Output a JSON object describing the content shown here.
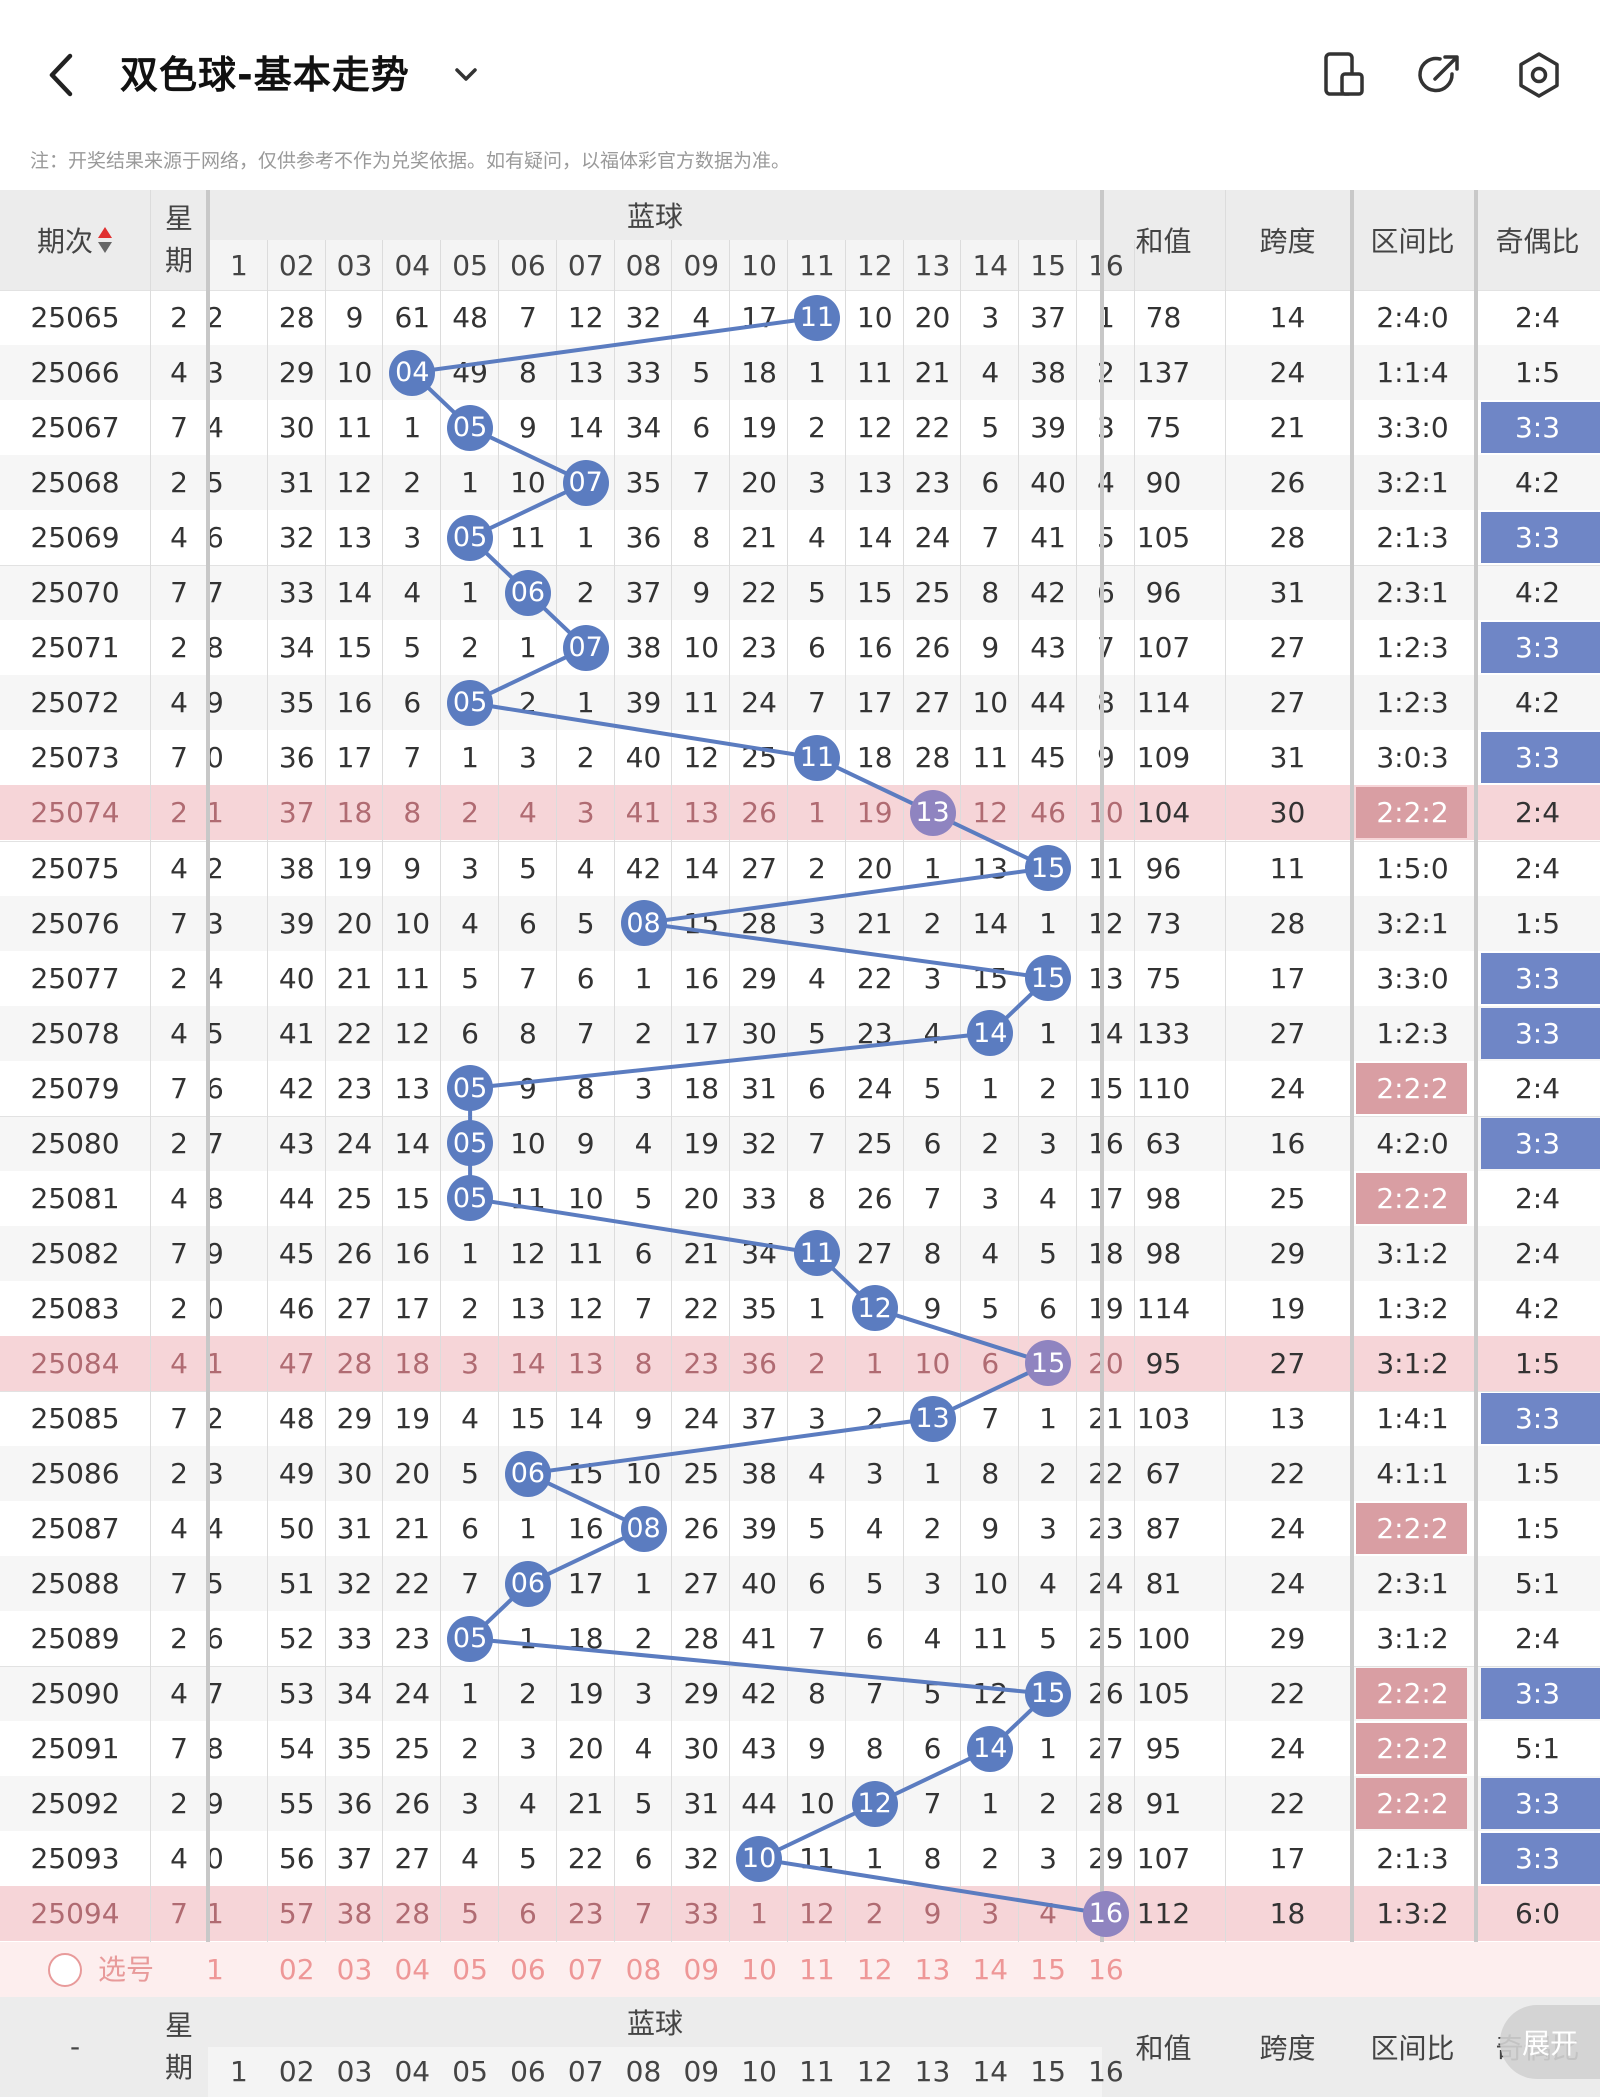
{
  "header": {
    "title": "双色球-基本走势",
    "notice": "注：开奖结果来源于网络，仅供参考不作为兑奖依据。如有疑问，以福体彩官方数据为准。",
    "icons": [
      "back-arrow-icon",
      "chevron-down-icon",
      "phone-layout-icon",
      "share-icon",
      "settings-icon"
    ]
  },
  "table": {
    "col_period": "期次",
    "col_week": "星\n期",
    "group_blue": "蓝球",
    "col_sum": "和值",
    "col_span": "跨度",
    "col_zone": "区间比",
    "col_oddeven": "奇偶比",
    "blue_numbers": [
      "1",
      "02",
      "03",
      "04",
      "05",
      "06",
      "07",
      "08",
      "09",
      "10",
      "11",
      "12",
      "13",
      "14",
      "15",
      "16"
    ],
    "rows": [
      {
        "period": "25065",
        "week": "2",
        "left": "2",
        "cells": [
          "28",
          "9",
          "61",
          "48",
          "7",
          "12",
          "32",
          "4",
          "17",
          "11",
          "10",
          "20",
          "3",
          "37",
          "1"
        ],
        "ball": 11,
        "sum": "78",
        "span": "14",
        "zone": "2:4:0",
        "oe": "2:4",
        "hl": ""
      },
      {
        "period": "25066",
        "week": "4",
        "left": "3",
        "cells": [
          "29",
          "10",
          "04",
          "49",
          "8",
          "13",
          "33",
          "5",
          "18",
          "1",
          "11",
          "21",
          "4",
          "38",
          "2"
        ],
        "ball": 4,
        "sum": "137",
        "span": "24",
        "zone": "1:1:4",
        "oe": "1:5",
        "hl": ""
      },
      {
        "period": "25067",
        "week": "7",
        "left": "4",
        "cells": [
          "30",
          "11",
          "1",
          "05",
          "9",
          "14",
          "34",
          "6",
          "19",
          "2",
          "12",
          "22",
          "5",
          "39",
          "3"
        ],
        "ball": 5,
        "sum": "75",
        "span": "21",
        "zone": "3:3:0",
        "oe": "3:3",
        "hl": "oe"
      },
      {
        "period": "25068",
        "week": "2",
        "left": "5",
        "cells": [
          "31",
          "12",
          "2",
          "1",
          "10",
          "07",
          "35",
          "7",
          "20",
          "3",
          "13",
          "23",
          "6",
          "40",
          "4"
        ],
        "ball": 7,
        "sum": "90",
        "span": "26",
        "zone": "3:2:1",
        "oe": "4:2",
        "hl": ""
      },
      {
        "period": "25069",
        "week": "4",
        "left": "6",
        "cells": [
          "32",
          "13",
          "3",
          "05",
          "11",
          "1",
          "36",
          "8",
          "21",
          "4",
          "14",
          "24",
          "7",
          "41",
          "5"
        ],
        "ball": 5,
        "sum": "105",
        "span": "28",
        "zone": "2:1:3",
        "oe": "3:3",
        "hl": "oe"
      },
      {
        "period": "25070",
        "week": "7",
        "left": "7",
        "cells": [
          "33",
          "14",
          "4",
          "1",
          "06",
          "2",
          "37",
          "9",
          "22",
          "5",
          "15",
          "25",
          "8",
          "42",
          "6"
        ],
        "ball": 6,
        "sum": "96",
        "span": "31",
        "zone": "2:3:1",
        "oe": "4:2",
        "hl": ""
      },
      {
        "period": "25071",
        "week": "2",
        "left": "8",
        "cells": [
          "34",
          "15",
          "5",
          "2",
          "1",
          "07",
          "38",
          "10",
          "23",
          "6",
          "16",
          "26",
          "9",
          "43",
          "7"
        ],
        "ball": 7,
        "sum": "107",
        "span": "27",
        "zone": "1:2:3",
        "oe": "3:3",
        "hl": "oe"
      },
      {
        "period": "25072",
        "week": "4",
        "left": "9",
        "cells": [
          "35",
          "16",
          "6",
          "05",
          "2",
          "1",
          "39",
          "11",
          "24",
          "7",
          "17",
          "27",
          "10",
          "44",
          "8"
        ],
        "ball": 5,
        "sum": "114",
        "span": "27",
        "zone": "1:2:3",
        "oe": "4:2",
        "hl": ""
      },
      {
        "period": "25073",
        "week": "7",
        "left": "0",
        "cells": [
          "36",
          "17",
          "7",
          "1",
          "3",
          "2",
          "40",
          "12",
          "25",
          "11",
          "18",
          "28",
          "11",
          "45",
          "9"
        ],
        "ball": 11,
        "sum": "109",
        "span": "31",
        "zone": "3:0:3",
        "oe": "3:3",
        "hl": "oe"
      },
      {
        "period": "25074",
        "week": "2",
        "left": "1",
        "cells": [
          "37",
          "18",
          "8",
          "2",
          "4",
          "3",
          "41",
          "13",
          "26",
          "1",
          "19",
          "13",
          "12",
          "46",
          "10"
        ],
        "ball": 13,
        "sum": "104",
        "span": "30",
        "zone": "2:2:2",
        "oe": "2:4",
        "hl": "zone",
        "pink": true
      },
      {
        "period": "25075",
        "week": "4",
        "left": "2",
        "cells": [
          "38",
          "19",
          "9",
          "3",
          "5",
          "4",
          "42",
          "14",
          "27",
          "2",
          "20",
          "1",
          "13",
          "15",
          "11"
        ],
        "ball": 15,
        "sum": "96",
        "span": "11",
        "zone": "1:5:0",
        "oe": "2:4",
        "hl": ""
      },
      {
        "period": "25076",
        "week": "7",
        "left": "3",
        "cells": [
          "39",
          "20",
          "10",
          "4",
          "6",
          "5",
          "08",
          "15",
          "28",
          "3",
          "21",
          "2",
          "14",
          "1",
          "12"
        ],
        "ball": 8,
        "sum": "73",
        "span": "28",
        "zone": "3:2:1",
        "oe": "1:5",
        "hl": ""
      },
      {
        "period": "25077",
        "week": "2",
        "left": "4",
        "cells": [
          "40",
          "21",
          "11",
          "5",
          "7",
          "6",
          "1",
          "16",
          "29",
          "4",
          "22",
          "3",
          "15",
          "15",
          "13"
        ],
        "ball": 15,
        "sum": "75",
        "span": "17",
        "zone": "3:3:0",
        "oe": "3:3",
        "hl": "oe"
      },
      {
        "period": "25078",
        "week": "4",
        "left": "5",
        "cells": [
          "41",
          "22",
          "12",
          "6",
          "8",
          "7",
          "2",
          "17",
          "30",
          "5",
          "23",
          "4",
          "14",
          "1",
          "14"
        ],
        "ball": 14,
        "sum": "133",
        "span": "27",
        "zone": "1:2:3",
        "oe": "3:3",
        "hl": "oe"
      },
      {
        "period": "25079",
        "week": "7",
        "left": "6",
        "cells": [
          "42",
          "23",
          "13",
          "05",
          "9",
          "8",
          "3",
          "18",
          "31",
          "6",
          "24",
          "5",
          "1",
          "2",
          "15"
        ],
        "ball": 5,
        "sum": "110",
        "span": "24",
        "zone": "2:2:2",
        "oe": "2:4",
        "hl": "zone"
      },
      {
        "period": "25080",
        "week": "2",
        "left": "7",
        "cells": [
          "43",
          "24",
          "14",
          "05",
          "10",
          "9",
          "4",
          "19",
          "32",
          "7",
          "25",
          "6",
          "2",
          "3",
          "16"
        ],
        "ball": 5,
        "sum": "63",
        "span": "16",
        "zone": "4:2:0",
        "oe": "3:3",
        "hl": "oe"
      },
      {
        "period": "25081",
        "week": "4",
        "left": "8",
        "cells": [
          "44",
          "25",
          "15",
          "05",
          "11",
          "10",
          "5",
          "20",
          "33",
          "8",
          "26",
          "7",
          "3",
          "4",
          "17"
        ],
        "ball": 5,
        "sum": "98",
        "span": "25",
        "zone": "2:2:2",
        "oe": "2:4",
        "hl": "zone"
      },
      {
        "period": "25082",
        "week": "7",
        "left": "9",
        "cells": [
          "45",
          "26",
          "16",
          "1",
          "12",
          "11",
          "6",
          "21",
          "34",
          "11",
          "27",
          "8",
          "4",
          "5",
          "18"
        ],
        "ball": 11,
        "sum": "98",
        "span": "29",
        "zone": "3:1:2",
        "oe": "2:4",
        "hl": ""
      },
      {
        "period": "25083",
        "week": "2",
        "left": "0",
        "cells": [
          "46",
          "27",
          "17",
          "2",
          "13",
          "12",
          "7",
          "22",
          "35",
          "1",
          "12",
          "9",
          "5",
          "6",
          "19"
        ],
        "ball": 12,
        "sum": "114",
        "span": "19",
        "zone": "1:3:2",
        "oe": "4:2",
        "hl": ""
      },
      {
        "period": "25084",
        "week": "4",
        "left": "1",
        "cells": [
          "47",
          "28",
          "18",
          "3",
          "14",
          "13",
          "8",
          "23",
          "36",
          "2",
          "1",
          "10",
          "6",
          "15",
          "20"
        ],
        "ball": 15,
        "sum": "95",
        "span": "27",
        "zone": "3:1:2",
        "oe": "1:5",
        "hl": "",
        "pink": true
      },
      {
        "period": "25085",
        "week": "7",
        "left": "2",
        "cells": [
          "48",
          "29",
          "19",
          "4",
          "15",
          "14",
          "9",
          "24",
          "37",
          "3",
          "2",
          "13",
          "7",
          "1",
          "21"
        ],
        "ball": 13,
        "sum": "103",
        "span": "13",
        "zone": "1:4:1",
        "oe": "3:3",
        "hl": "oe"
      },
      {
        "period": "25086",
        "week": "2",
        "left": "3",
        "cells": [
          "49",
          "30",
          "20",
          "5",
          "06",
          "15",
          "10",
          "25",
          "38",
          "4",
          "3",
          "1",
          "8",
          "2",
          "22"
        ],
        "ball": 6,
        "sum": "67",
        "span": "22",
        "zone": "4:1:1",
        "oe": "1:5",
        "hl": ""
      },
      {
        "period": "25087",
        "week": "4",
        "left": "4",
        "cells": [
          "50",
          "31",
          "21",
          "6",
          "1",
          "16",
          "08",
          "26",
          "39",
          "5",
          "4",
          "2",
          "9",
          "3",
          "23"
        ],
        "ball": 8,
        "sum": "87",
        "span": "24",
        "zone": "2:2:2",
        "oe": "1:5",
        "hl": "zone"
      },
      {
        "period": "25088",
        "week": "7",
        "left": "5",
        "cells": [
          "51",
          "32",
          "22",
          "7",
          "06",
          "17",
          "1",
          "27",
          "40",
          "6",
          "5",
          "3",
          "10",
          "4",
          "24"
        ],
        "ball": 6,
        "sum": "81",
        "span": "24",
        "zone": "2:3:1",
        "oe": "5:1",
        "hl": ""
      },
      {
        "period": "25089",
        "week": "2",
        "left": "6",
        "cells": [
          "52",
          "33",
          "23",
          "05",
          "1",
          "18",
          "2",
          "28",
          "41",
          "7",
          "6",
          "4",
          "11",
          "5",
          "25"
        ],
        "ball": 5,
        "sum": "100",
        "span": "29",
        "zone": "3:1:2",
        "oe": "2:4",
        "hl": ""
      },
      {
        "period": "25090",
        "week": "4",
        "left": "7",
        "cells": [
          "53",
          "34",
          "24",
          "1",
          "2",
          "19",
          "3",
          "29",
          "42",
          "8",
          "7",
          "5",
          "12",
          "15",
          "26"
        ],
        "ball": 15,
        "sum": "105",
        "span": "22",
        "zone": "2:2:2",
        "oe": "3:3",
        "hl": "both"
      },
      {
        "period": "25091",
        "week": "7",
        "left": "8",
        "cells": [
          "54",
          "35",
          "25",
          "2",
          "3",
          "20",
          "4",
          "30",
          "43",
          "9",
          "8",
          "6",
          "14",
          "1",
          "27"
        ],
        "ball": 14,
        "sum": "95",
        "span": "24",
        "zone": "2:2:2",
        "oe": "5:1",
        "hl": "zone"
      },
      {
        "period": "25092",
        "week": "2",
        "left": "9",
        "cells": [
          "55",
          "36",
          "26",
          "3",
          "4",
          "21",
          "5",
          "31",
          "44",
          "10",
          "12",
          "7",
          "1",
          "2",
          "28"
        ],
        "ball": 12,
        "sum": "91",
        "span": "22",
        "zone": "2:2:2",
        "oe": "3:3",
        "hl": "both"
      },
      {
        "period": "25093",
        "week": "4",
        "left": "0",
        "cells": [
          "56",
          "37",
          "27",
          "4",
          "5",
          "22",
          "6",
          "32",
          "10",
          "11",
          "1",
          "8",
          "2",
          "3",
          "29"
        ],
        "ball": 10,
        "sum": "107",
        "span": "17",
        "zone": "2:1:3",
        "oe": "3:3",
        "hl": "oe"
      },
      {
        "period": "25094",
        "week": "7",
        "left": "1",
        "cells": [
          "57",
          "38",
          "28",
          "5",
          "6",
          "23",
          "7",
          "33",
          "1",
          "12",
          "2",
          "9",
          "3",
          "4",
          "16"
        ],
        "ball": 16,
        "sum": "112",
        "span": "18",
        "zone": "1:3:2",
        "oe": "6:0",
        "hl": "",
        "pink": true
      }
    ],
    "select_label": "选号",
    "footer_period": "-",
    "expand_label": "展开"
  },
  "colors": {
    "ball": "#5b7cc0",
    "line": "#5b7cc0",
    "row_pink": "#f6d5d8",
    "hl_blue": "#6f86c6",
    "hl_pink": "#d99ea3",
    "header_bg": "#ececec"
  }
}
